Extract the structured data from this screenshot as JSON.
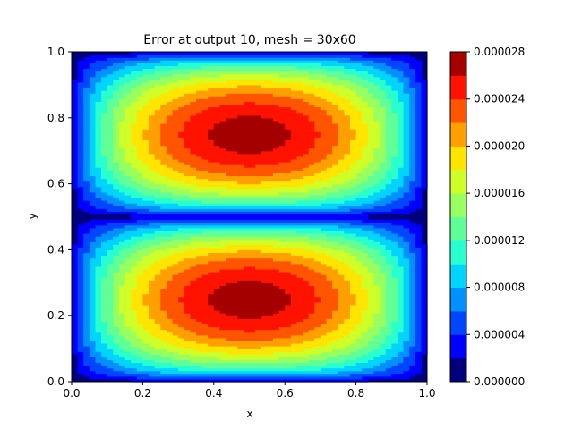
{
  "chart_data": {
    "type": "heatmap",
    "subtype": "filled-contour",
    "title": "Error at output 10, mesh = 30x60",
    "xlabel": "x",
    "ylabel": "y",
    "xlim": [
      0.0,
      1.0
    ],
    "ylim": [
      0.0,
      1.0
    ],
    "x_ticks": [
      "0.0",
      "0.2",
      "0.4",
      "0.6",
      "0.8",
      "1.0"
    ],
    "y_ticks": [
      "0.0",
      "0.2",
      "0.4",
      "0.6",
      "0.8",
      "1.0"
    ],
    "grid": false,
    "colormap": "jet",
    "field": {
      "peak_value": 2.7e-05,
      "peaks": [
        {
          "x": 0.5,
          "y": 0.75
        },
        {
          "x": 0.5,
          "y": 0.25
        }
      ]
    },
    "colorbar": {
      "levels": [
        0.0,
        2e-06,
        4e-06,
        6e-06,
        8e-06,
        1e-05,
        1.2e-05,
        1.4e-05,
        1.6e-05,
        1.8e-05,
        2e-05,
        2.2e-05,
        2.4e-05,
        2.6e-05,
        2.8e-05
      ],
      "colors": [
        "#00007f",
        "#0000ff",
        "#0046ff",
        "#0090ff",
        "#00d4ff",
        "#29ffce",
        "#60ff97",
        "#97ff60",
        "#ceff29",
        "#ffe500",
        "#ff9f00",
        "#ff5500",
        "#ff1300",
        "#a40000"
      ],
      "tick_labels": [
        "0.000000",
        "0.000004",
        "0.000008",
        "0.000012",
        "0.000016",
        "0.000020",
        "0.000024",
        "0.000028"
      ]
    }
  }
}
